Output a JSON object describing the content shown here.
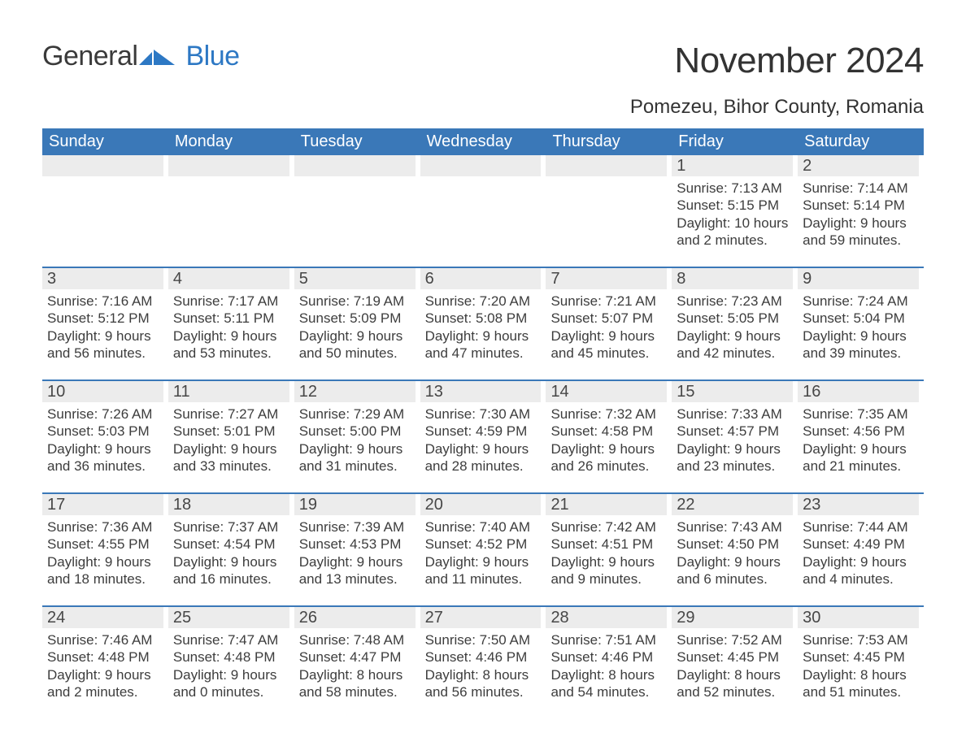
{
  "logo": {
    "word1": "General",
    "word2": "Blue",
    "flag_color": "#2d78c4"
  },
  "title": "November 2024",
  "location": "Pomezeu, Bihor County, Romania",
  "colors": {
    "header_bg": "#3a78b8",
    "header_text": "#ffffff",
    "daynum_bg": "#ececec",
    "text": "#3a3a3a",
    "rule": "#3a78b8",
    "background": "#ffffff"
  },
  "typography": {
    "title_fontsize": 44,
    "location_fontsize": 24,
    "header_fontsize": 20,
    "daynum_fontsize": 20,
    "body_fontsize": 17
  },
  "day_headers": [
    "Sunday",
    "Monday",
    "Tuesday",
    "Wednesday",
    "Thursday",
    "Friday",
    "Saturday"
  ],
  "weeks": [
    [
      {
        "num": "",
        "sunrise": "",
        "sunset": "",
        "daylight1": "",
        "daylight2": ""
      },
      {
        "num": "",
        "sunrise": "",
        "sunset": "",
        "daylight1": "",
        "daylight2": ""
      },
      {
        "num": "",
        "sunrise": "",
        "sunset": "",
        "daylight1": "",
        "daylight2": ""
      },
      {
        "num": "",
        "sunrise": "",
        "sunset": "",
        "daylight1": "",
        "daylight2": ""
      },
      {
        "num": "",
        "sunrise": "",
        "sunset": "",
        "daylight1": "",
        "daylight2": ""
      },
      {
        "num": "1",
        "sunrise": "Sunrise: 7:13 AM",
        "sunset": "Sunset: 5:15 PM",
        "daylight1": "Daylight: 10 hours",
        "daylight2": "and 2 minutes."
      },
      {
        "num": "2",
        "sunrise": "Sunrise: 7:14 AM",
        "sunset": "Sunset: 5:14 PM",
        "daylight1": "Daylight: 9 hours",
        "daylight2": "and 59 minutes."
      }
    ],
    [
      {
        "num": "3",
        "sunrise": "Sunrise: 7:16 AM",
        "sunset": "Sunset: 5:12 PM",
        "daylight1": "Daylight: 9 hours",
        "daylight2": "and 56 minutes."
      },
      {
        "num": "4",
        "sunrise": "Sunrise: 7:17 AM",
        "sunset": "Sunset: 5:11 PM",
        "daylight1": "Daylight: 9 hours",
        "daylight2": "and 53 minutes."
      },
      {
        "num": "5",
        "sunrise": "Sunrise: 7:19 AM",
        "sunset": "Sunset: 5:09 PM",
        "daylight1": "Daylight: 9 hours",
        "daylight2": "and 50 minutes."
      },
      {
        "num": "6",
        "sunrise": "Sunrise: 7:20 AM",
        "sunset": "Sunset: 5:08 PM",
        "daylight1": "Daylight: 9 hours",
        "daylight2": "and 47 minutes."
      },
      {
        "num": "7",
        "sunrise": "Sunrise: 7:21 AM",
        "sunset": "Sunset: 5:07 PM",
        "daylight1": "Daylight: 9 hours",
        "daylight2": "and 45 minutes."
      },
      {
        "num": "8",
        "sunrise": "Sunrise: 7:23 AM",
        "sunset": "Sunset: 5:05 PM",
        "daylight1": "Daylight: 9 hours",
        "daylight2": "and 42 minutes."
      },
      {
        "num": "9",
        "sunrise": "Sunrise: 7:24 AM",
        "sunset": "Sunset: 5:04 PM",
        "daylight1": "Daylight: 9 hours",
        "daylight2": "and 39 minutes."
      }
    ],
    [
      {
        "num": "10",
        "sunrise": "Sunrise: 7:26 AM",
        "sunset": "Sunset: 5:03 PM",
        "daylight1": "Daylight: 9 hours",
        "daylight2": "and 36 minutes."
      },
      {
        "num": "11",
        "sunrise": "Sunrise: 7:27 AM",
        "sunset": "Sunset: 5:01 PM",
        "daylight1": "Daylight: 9 hours",
        "daylight2": "and 33 minutes."
      },
      {
        "num": "12",
        "sunrise": "Sunrise: 7:29 AM",
        "sunset": "Sunset: 5:00 PM",
        "daylight1": "Daylight: 9 hours",
        "daylight2": "and 31 minutes."
      },
      {
        "num": "13",
        "sunrise": "Sunrise: 7:30 AM",
        "sunset": "Sunset: 4:59 PM",
        "daylight1": "Daylight: 9 hours",
        "daylight2": "and 28 minutes."
      },
      {
        "num": "14",
        "sunrise": "Sunrise: 7:32 AM",
        "sunset": "Sunset: 4:58 PM",
        "daylight1": "Daylight: 9 hours",
        "daylight2": "and 26 minutes."
      },
      {
        "num": "15",
        "sunrise": "Sunrise: 7:33 AM",
        "sunset": "Sunset: 4:57 PM",
        "daylight1": "Daylight: 9 hours",
        "daylight2": "and 23 minutes."
      },
      {
        "num": "16",
        "sunrise": "Sunrise: 7:35 AM",
        "sunset": "Sunset: 4:56 PM",
        "daylight1": "Daylight: 9 hours",
        "daylight2": "and 21 minutes."
      }
    ],
    [
      {
        "num": "17",
        "sunrise": "Sunrise: 7:36 AM",
        "sunset": "Sunset: 4:55 PM",
        "daylight1": "Daylight: 9 hours",
        "daylight2": "and 18 minutes."
      },
      {
        "num": "18",
        "sunrise": "Sunrise: 7:37 AM",
        "sunset": "Sunset: 4:54 PM",
        "daylight1": "Daylight: 9 hours",
        "daylight2": "and 16 minutes."
      },
      {
        "num": "19",
        "sunrise": "Sunrise: 7:39 AM",
        "sunset": "Sunset: 4:53 PM",
        "daylight1": "Daylight: 9 hours",
        "daylight2": "and 13 minutes."
      },
      {
        "num": "20",
        "sunrise": "Sunrise: 7:40 AM",
        "sunset": "Sunset: 4:52 PM",
        "daylight1": "Daylight: 9 hours",
        "daylight2": "and 11 minutes."
      },
      {
        "num": "21",
        "sunrise": "Sunrise: 7:42 AM",
        "sunset": "Sunset: 4:51 PM",
        "daylight1": "Daylight: 9 hours",
        "daylight2": "and 9 minutes."
      },
      {
        "num": "22",
        "sunrise": "Sunrise: 7:43 AM",
        "sunset": "Sunset: 4:50 PM",
        "daylight1": "Daylight: 9 hours",
        "daylight2": "and 6 minutes."
      },
      {
        "num": "23",
        "sunrise": "Sunrise: 7:44 AM",
        "sunset": "Sunset: 4:49 PM",
        "daylight1": "Daylight: 9 hours",
        "daylight2": "and 4 minutes."
      }
    ],
    [
      {
        "num": "24",
        "sunrise": "Sunrise: 7:46 AM",
        "sunset": "Sunset: 4:48 PM",
        "daylight1": "Daylight: 9 hours",
        "daylight2": "and 2 minutes."
      },
      {
        "num": "25",
        "sunrise": "Sunrise: 7:47 AM",
        "sunset": "Sunset: 4:48 PM",
        "daylight1": "Daylight: 9 hours",
        "daylight2": "and 0 minutes."
      },
      {
        "num": "26",
        "sunrise": "Sunrise: 7:48 AM",
        "sunset": "Sunset: 4:47 PM",
        "daylight1": "Daylight: 8 hours",
        "daylight2": "and 58 minutes."
      },
      {
        "num": "27",
        "sunrise": "Sunrise: 7:50 AM",
        "sunset": "Sunset: 4:46 PM",
        "daylight1": "Daylight: 8 hours",
        "daylight2": "and 56 minutes."
      },
      {
        "num": "28",
        "sunrise": "Sunrise: 7:51 AM",
        "sunset": "Sunset: 4:46 PM",
        "daylight1": "Daylight: 8 hours",
        "daylight2": "and 54 minutes."
      },
      {
        "num": "29",
        "sunrise": "Sunrise: 7:52 AM",
        "sunset": "Sunset: 4:45 PM",
        "daylight1": "Daylight: 8 hours",
        "daylight2": "and 52 minutes."
      },
      {
        "num": "30",
        "sunrise": "Sunrise: 7:53 AM",
        "sunset": "Sunset: 4:45 PM",
        "daylight1": "Daylight: 8 hours",
        "daylight2": "and 51 minutes."
      }
    ]
  ]
}
